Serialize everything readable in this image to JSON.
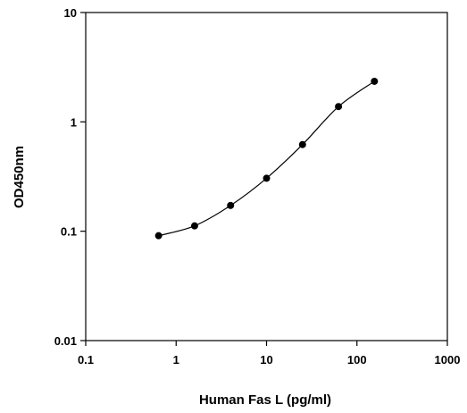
{
  "chart_data": {
    "type": "scatter",
    "title": "",
    "xlabel": "Human Fas L (pg/ml)",
    "ylabel": "OD450nm",
    "x_scale": "log",
    "y_scale": "log",
    "xlim": [
      0.1,
      1000
    ],
    "ylim": [
      0.01,
      10
    ],
    "x_ticks": [
      {
        "value": 0.1,
        "label": "0.1"
      },
      {
        "value": 1,
        "label": "1"
      },
      {
        "value": 10,
        "label": "10"
      },
      {
        "value": 100,
        "label": "100"
      },
      {
        "value": 1000,
        "label": "1000"
      }
    ],
    "y_ticks": [
      {
        "value": 0.01,
        "label": "0.01"
      },
      {
        "value": 0.1,
        "label": "0.1"
      },
      {
        "value": 1,
        "label": "1"
      },
      {
        "value": 10,
        "label": "10"
      }
    ],
    "grid": false,
    "series": [
      {
        "x": [
          0.64,
          1.6,
          4,
          10,
          25,
          62.5,
          156
        ],
        "y": [
          0.091,
          0.112,
          0.172,
          0.305,
          0.62,
          1.38,
          2.35
        ],
        "line": "smooth",
        "marker": "circle",
        "color": "#000000"
      }
    ]
  }
}
